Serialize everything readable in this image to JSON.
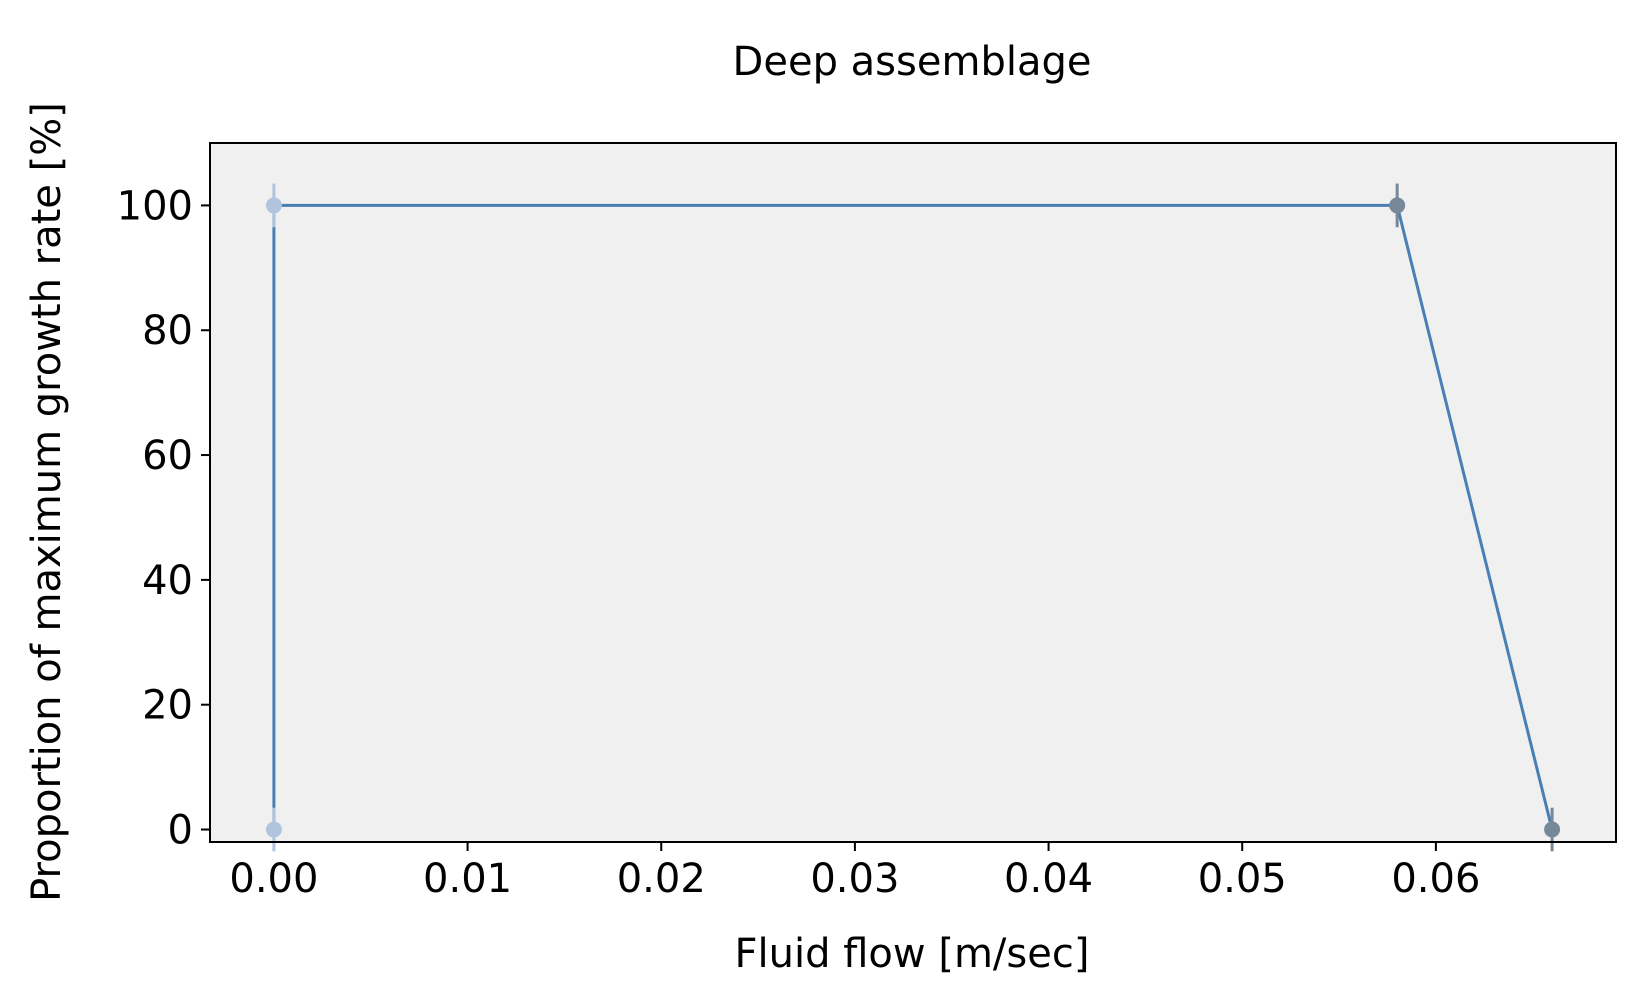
{
  "chart_data": {
    "type": "line",
    "title": "Deep assemblage",
    "xlabel": "Fluid flow [m/sec]",
    "ylabel": "Proportion of maximum growth rate [%]",
    "xlim": [
      -0.0033,
      0.0693
    ],
    "ylim": [
      -2,
      110
    ],
    "x_ticks": [
      0.0,
      0.01,
      0.02,
      0.03,
      0.04,
      0.05,
      0.06
    ],
    "x_tick_labels": [
      "0.00",
      "0.01",
      "0.02",
      "0.03",
      "0.04",
      "0.05",
      "0.06"
    ],
    "y_ticks": [
      0,
      20,
      40,
      60,
      80,
      100
    ],
    "y_tick_labels": [
      "0",
      "20",
      "40",
      "60",
      "80",
      "100"
    ],
    "grid": false,
    "background": "#f0f0f0",
    "series": [
      {
        "line_color": "#4a7fb5",
        "points": [
          {
            "x": 0.0,
            "y": 0,
            "err": 3.5,
            "marker_color": "#b0c4de"
          },
          {
            "x": 0.0,
            "y": 100,
            "err": 3.5,
            "marker_color": "#b0c4de"
          },
          {
            "x": 0.058,
            "y": 100,
            "err": 3.5,
            "marker_color": "#778899"
          },
          {
            "x": 0.066,
            "y": 0,
            "err": 3.5,
            "marker_color": "#778899"
          }
        ]
      }
    ]
  }
}
